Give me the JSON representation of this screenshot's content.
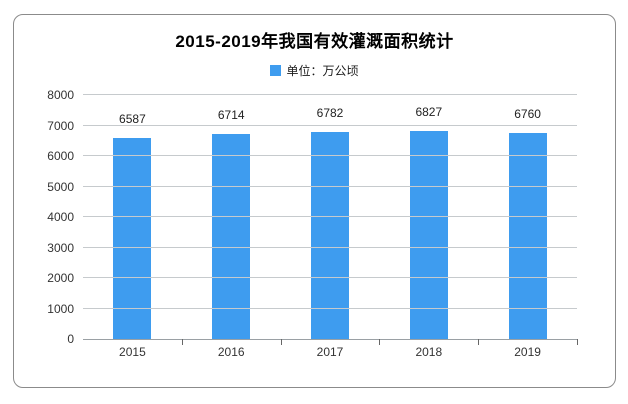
{
  "chart_data": {
    "type": "bar",
    "title": "2015-2019年我国有效灌溉面积统计",
    "legend": {
      "label": "单位：万公顷",
      "position": "top-center"
    },
    "categories": [
      "2015",
      "2016",
      "2017",
      "2018",
      "2019"
    ],
    "values": [
      6587,
      6714,
      6782,
      6827,
      6760
    ],
    "xlabel": "",
    "ylabel": "",
    "ylim": [
      0,
      8000
    ],
    "ytick_step": 1000,
    "yticks": [
      "0",
      "1000",
      "2000",
      "3000",
      "4000",
      "5000",
      "6000",
      "7000",
      "8000"
    ],
    "grid": true,
    "data_labels": true,
    "colors": {
      "bar": "#3E9CEF",
      "gridline": "#c6cacd",
      "axis_line": "#9aa0a4",
      "tick": "#666666",
      "card_border": "#8b8b8b",
      "text": "#333333"
    }
  }
}
